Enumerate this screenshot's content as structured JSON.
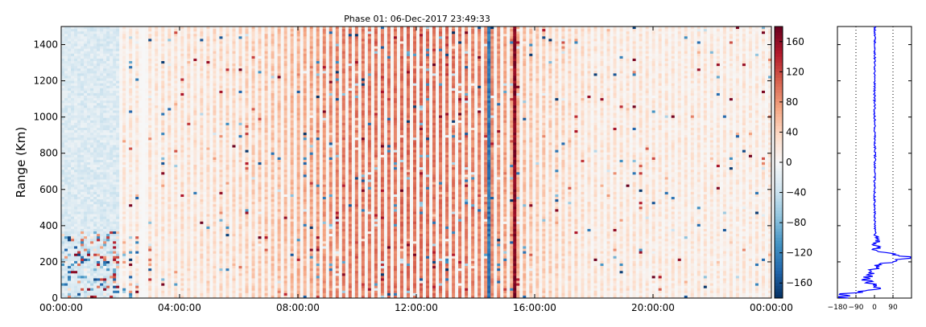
{
  "chart_data": [
    {
      "type": "heatmap",
      "title": "Phase 01: 06-Dec-2017 23:49:33",
      "ylabel": "Range (Km)",
      "xlabel": "",
      "x_ticks": [
        "00:00:00",
        "04:00:00",
        "08:00:00",
        "12:00:00",
        "16:00:00",
        "20:00:00",
        "00:00:00"
      ],
      "x_range_hours": [
        0,
        24
      ],
      "y_ticks": [
        0,
        200,
        400,
        600,
        800,
        1000,
        1200,
        1400
      ],
      "ylim": [
        0,
        1500
      ],
      "colorbar": {
        "ticks": [
          160,
          120,
          80,
          40,
          0,
          -40,
          -80,
          -120,
          -160
        ],
        "range": [
          -180,
          180
        ],
        "colormap": "RdBu_r",
        "colors": {
          "low": "#053061",
          "mid": "#f7f7f7",
          "high": "#67001f"
        }
      },
      "column_bias_by_hour": [
        {
          "hour": 0,
          "value": -20
        },
        {
          "hour": 2,
          "value": 20
        },
        {
          "hour": 6,
          "value": 35
        },
        {
          "hour": 8,
          "value": 60
        },
        {
          "hour": 9.5,
          "value": 90
        },
        {
          "hour": 12,
          "value": 100
        },
        {
          "hour": 14.5,
          "value": 85
        },
        {
          "hour": 16,
          "value": 45
        },
        {
          "hour": 18,
          "value": 25
        },
        {
          "hour": 24,
          "value": 20
        }
      ],
      "grid": false
    },
    {
      "type": "line",
      "title": "",
      "x_ticks": [
        "-180",
        "-90",
        "0",
        "90"
      ],
      "xlim": [
        -180,
        180
      ],
      "ylim": [
        0,
        1500
      ],
      "dotted_lines_at": [
        -90,
        90
      ],
      "line_color": "#0000ff",
      "series": [
        {
          "profile": [
            {
              "range": 0,
              "phase": 0
            },
            {
              "range": 20,
              "phase": -140
            },
            {
              "range": 50,
              "phase": 15
            },
            {
              "range": 100,
              "phase": -40
            },
            {
              "range": 180,
              "phase": 10
            },
            {
              "range": 225,
              "phase": 175
            },
            {
              "range": 260,
              "phase": 8
            },
            {
              "range": 320,
              "phase": 5
            },
            {
              "range": 500,
              "phase": 0
            },
            {
              "range": 800,
              "phase": 3
            },
            {
              "range": 1100,
              "phase": 0
            },
            {
              "range": 1500,
              "phase": 2
            }
          ]
        }
      ]
    }
  ]
}
